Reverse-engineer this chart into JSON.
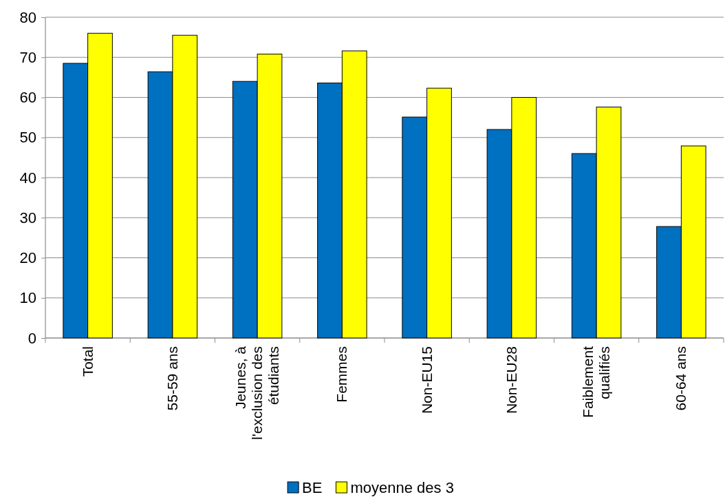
{
  "chart_data": {
    "type": "bar",
    "categories": [
      "Total",
      "55-59 ans",
      "Jeunes, à l'exclusion des étudiants",
      "Femmes",
      "Non-EU15",
      "Non-EU28",
      "Faiblement qualifiés",
      "60-64 ans"
    ],
    "series": [
      {
        "name": "BE",
        "color": "#0070c0",
        "values": [
          68.5,
          66.4,
          64,
          63.6,
          55.1,
          52,
          46,
          27.8
        ]
      },
      {
        "name": "moyenne des 3",
        "color": "#ffff00",
        "values": [
          76,
          75.5,
          70.8,
          71.6,
          62.3,
          60,
          57.6,
          47.9
        ]
      }
    ],
    "ylim": [
      0,
      80
    ],
    "yticks": [
      0,
      10,
      20,
      30,
      40,
      50,
      60,
      70,
      80
    ],
    "grid": "y",
    "legend": "bottom"
  }
}
